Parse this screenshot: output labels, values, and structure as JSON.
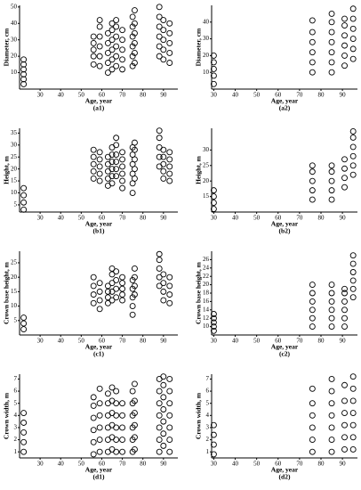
{
  "chart_data": [
    {
      "type": "scatter",
      "ylabel": "Diameter, cm",
      "xlabel": "Age, year",
      "caption": "(a1)",
      "color": "#000000",
      "xlim": [
        20,
        97
      ],
      "ylim": [
        0,
        51
      ],
      "xticks": [
        30,
        40,
        50,
        60,
        70,
        80,
        90
      ],
      "yticks": [
        10,
        20,
        30,
        40,
        50
      ],
      "series": [
        {
          "x": 22,
          "values": [
            3,
            6,
            9,
            12,
            15,
            18
          ]
        },
        {
          "x": 56,
          "values": [
            15,
            20,
            24,
            28,
            32
          ]
        },
        {
          "x": 59,
          "values": [
            14,
            20,
            26,
            32,
            38,
            42
          ]
        },
        {
          "x": 63,
          "values": [
            10,
            16,
            22,
            28,
            34
          ]
        },
        {
          "x": 65,
          "values": [
            12,
            18,
            24,
            30,
            36,
            40
          ]
        },
        {
          "x": 67,
          "values": [
            14,
            20,
            26,
            32,
            38,
            42
          ]
        },
        {
          "x": 70,
          "values": [
            12,
            18,
            24,
            30,
            36
          ]
        },
        {
          "x": 75,
          "values": [
            14,
            20,
            26,
            32,
            38,
            44
          ]
        },
        {
          "x": 76,
          "values": [
            16,
            22,
            28,
            34,
            40,
            48
          ]
        },
        {
          "x": 88,
          "values": [
            20,
            26,
            32,
            38,
            44,
            50
          ]
        },
        {
          "x": 90,
          "values": [
            18,
            24,
            30,
            36,
            42
          ]
        },
        {
          "x": 93,
          "values": [
            16,
            22,
            28,
            34,
            40
          ]
        }
      ]
    },
    {
      "type": "scatter",
      "ylabel": "Diameter, cm",
      "xlabel": "Age, year",
      "caption": "(a2)",
      "color": "#000000",
      "xlim": [
        29,
        97
      ],
      "ylim": [
        0,
        50
      ],
      "xticks": [
        30,
        40,
        50,
        60,
        70,
        80,
        90
      ],
      "yticks": [
        10,
        20,
        30,
        40
      ],
      "series": [
        {
          "x": 30,
          "values": [
            3,
            8,
            12,
            16,
            20
          ]
        },
        {
          "x": 76,
          "values": [
            10,
            16,
            22,
            28,
            34,
            41
          ]
        },
        {
          "x": 85,
          "values": [
            10,
            16,
            22,
            28,
            34,
            40,
            45
          ]
        },
        {
          "x": 91,
          "values": [
            14,
            20,
            26,
            32,
            38,
            42
          ]
        },
        {
          "x": 95,
          "values": [
            18,
            24,
            30,
            36,
            42,
            48
          ]
        }
      ]
    },
    {
      "type": "scatter",
      "ylabel": "Height, m",
      "xlabel": "Age, year",
      "caption": "(b1)",
      "color": "#000000",
      "xlim": [
        20,
        97
      ],
      "ylim": [
        2,
        37
      ],
      "xticks": [
        30,
        40,
        50,
        60,
        70,
        80,
        90
      ],
      "yticks": [
        5,
        10,
        15,
        20,
        25,
        30,
        35
      ],
      "series": [
        {
          "x": 22,
          "values": [
            3,
            6,
            9,
            12
          ]
        },
        {
          "x": 56,
          "values": [
            16,
            19,
            22,
            25,
            28
          ]
        },
        {
          "x": 59,
          "values": [
            15,
            18,
            21,
            24,
            27
          ]
        },
        {
          "x": 63,
          "values": [
            13,
            16,
            19,
            22,
            25
          ]
        },
        {
          "x": 65,
          "values": [
            14,
            17,
            20,
            23,
            26,
            29
          ]
        },
        {
          "x": 67,
          "values": [
            17,
            20,
            23,
            26,
            30,
            33
          ]
        },
        {
          "x": 70,
          "values": [
            12,
            15,
            18,
            21,
            24,
            27
          ]
        },
        {
          "x": 75,
          "values": [
            10,
            14,
            18,
            22,
            26,
            29
          ]
        },
        {
          "x": 76,
          "values": [
            16,
            20,
            24,
            28,
            31
          ]
        },
        {
          "x": 88,
          "values": [
            21,
            25,
            29,
            33,
            36
          ]
        },
        {
          "x": 90,
          "values": [
            16,
            19,
            22,
            25,
            28
          ]
        },
        {
          "x": 93,
          "values": [
            15,
            18,
            21,
            24,
            27
          ]
        }
      ]
    },
    {
      "type": "scatter",
      "ylabel": "Height, m",
      "xlabel": "Age, year",
      "caption": "(b2)",
      "color": "#000000",
      "xlim": [
        29,
        97
      ],
      "ylim": [
        10,
        37
      ],
      "xticks": [
        30,
        40,
        50,
        60,
        70,
        80,
        90
      ],
      "yticks": [
        15,
        20,
        25,
        30
      ],
      "series": [
        {
          "x": 30,
          "values": [
            11,
            13,
            15,
            17
          ]
        },
        {
          "x": 76,
          "values": [
            14,
            17,
            20,
            23,
            25
          ]
        },
        {
          "x": 85,
          "values": [
            14,
            17,
            20,
            23,
            25
          ]
        },
        {
          "x": 91,
          "values": [
            18,
            21,
            24,
            27
          ]
        },
        {
          "x": 95,
          "values": [
            22,
            25,
            28,
            31,
            34,
            36
          ]
        }
      ]
    },
    {
      "type": "scatter",
      "ylabel": "Crown base height, m",
      "xlabel": "Age, year",
      "caption": "(c1)",
      "color": "#000000",
      "xlim": [
        20,
        97
      ],
      "ylim": [
        0,
        29
      ],
      "xticks": [
        30,
        40,
        50,
        60,
        70,
        80,
        90
      ],
      "yticks": [
        5,
        10,
        15,
        20,
        25
      ],
      "series": [
        {
          "x": 22,
          "values": [
            2,
            4,
            6
          ]
        },
        {
          "x": 56,
          "values": [
            11,
            14,
            17,
            20
          ]
        },
        {
          "x": 59,
          "values": [
            9,
            12,
            15,
            18
          ]
        },
        {
          "x": 63,
          "values": [
            11,
            13,
            15,
            17
          ]
        },
        {
          "x": 65,
          "values": [
            12,
            15,
            18,
            21,
            23
          ]
        },
        {
          "x": 67,
          "values": [
            13,
            16,
            19,
            22
          ]
        },
        {
          "x": 70,
          "values": [
            12,
            14,
            16,
            18,
            20
          ]
        },
        {
          "x": 75,
          "values": [
            7,
            10,
            13,
            16,
            19
          ]
        },
        {
          "x": 76,
          "values": [
            14,
            17,
            20,
            23
          ]
        },
        {
          "x": 88,
          "values": [
            17,
            20,
            23,
            26,
            28
          ]
        },
        {
          "x": 90,
          "values": [
            12,
            15,
            18,
            21
          ]
        },
        {
          "x": 93,
          "values": [
            11,
            14,
            17,
            20
          ]
        }
      ]
    },
    {
      "type": "scatter",
      "ylabel": "Crown base height, m",
      "xlabel": "Age, year",
      "caption": "(c2)",
      "color": "#000000",
      "xlim": [
        29,
        97
      ],
      "ylim": [
        8,
        28
      ],
      "xticks": [
        30,
        40,
        50,
        60,
        70,
        80,
        90
      ],
      "yticks": [
        10,
        12,
        14,
        16,
        18,
        20,
        22,
        24,
        26
      ],
      "series": [
        {
          "x": 30,
          "values": [
            9,
            10,
            11,
            12,
            13
          ]
        },
        {
          "x": 76,
          "values": [
            10,
            12,
            14,
            16,
            18,
            20
          ]
        },
        {
          "x": 85,
          "values": [
            10,
            12,
            14,
            16,
            18,
            20
          ]
        },
        {
          "x": 91,
          "values": [
            10,
            12,
            14,
            16,
            18,
            19
          ]
        },
        {
          "x": 95,
          "values": [
            17,
            19,
            21,
            23,
            25,
            27
          ]
        }
      ]
    },
    {
      "type": "scatter",
      "ylabel": "Crown width, m",
      "xlabel": "Age, year",
      "caption": "(d1)",
      "color": "#000000",
      "xlim": [
        20,
        97
      ],
      "ylim": [
        0.5,
        7.4
      ],
      "xticks": [
        30,
        40,
        50,
        60,
        70,
        80,
        90
      ],
      "yticks": [
        1,
        2,
        3,
        4,
        5,
        6,
        7
      ],
      "series": [
        {
          "x": 22,
          "values": [
            1,
            1.8,
            2.6,
            3.4,
            4.2
          ]
        },
        {
          "x": 56,
          "values": [
            0.8,
            1.8,
            2.8,
            3.8,
            4.8,
            5.5
          ]
        },
        {
          "x": 59,
          "values": [
            1,
            2,
            3,
            4,
            5,
            6.2
          ]
        },
        {
          "x": 63,
          "values": [
            1,
            2,
            3,
            4,
            5,
            5.8
          ]
        },
        {
          "x": 65,
          "values": [
            1.2,
            2.2,
            3.2,
            4.2,
            5.2,
            6.3
          ]
        },
        {
          "x": 67,
          "values": [
            1,
            2,
            3,
            4,
            5,
            6
          ]
        },
        {
          "x": 70,
          "values": [
            1,
            2,
            3,
            4,
            5
          ]
        },
        {
          "x": 75,
          "values": [
            1,
            2,
            3,
            4,
            5,
            6
          ]
        },
        {
          "x": 76,
          "values": [
            1.2,
            2.2,
            3.2,
            4.2,
            5.2,
            6.6
          ]
        },
        {
          "x": 88,
          "values": [
            1,
            2,
            3,
            4,
            5,
            6,
            7
          ]
        },
        {
          "x": 90,
          "values": [
            1.5,
            2.5,
            3.5,
            4.5,
            5.5,
            6.5,
            7.2
          ]
        },
        {
          "x": 93,
          "values": [
            1,
            2,
            3,
            4,
            5,
            6,
            7
          ]
        }
      ]
    },
    {
      "type": "scatter",
      "ylabel": "Crown width, m",
      "xlabel": "Age, year",
      "caption": "(d2)",
      "color": "#000000",
      "xlim": [
        29,
        97
      ],
      "ylim": [
        0.5,
        7.4
      ],
      "xticks": [
        30,
        40,
        50,
        60,
        70,
        80,
        90
      ],
      "yticks": [
        1,
        2,
        3,
        4,
        5,
        6,
        7
      ],
      "series": [
        {
          "x": 30,
          "values": [
            0.8,
            1.6,
            2.4,
            3.2
          ]
        },
        {
          "x": 76,
          "values": [
            1,
            2,
            3,
            4,
            5,
            6.2
          ]
        },
        {
          "x": 85,
          "values": [
            1,
            2,
            3,
            4,
            5,
            6,
            7
          ]
        },
        {
          "x": 91,
          "values": [
            1.2,
            2.2,
            3.2,
            4.2,
            5.2,
            6.5
          ]
        },
        {
          "x": 95,
          "values": [
            1.2,
            2.2,
            3.2,
            4.2,
            5.2,
            6.2,
            7.2
          ]
        }
      ]
    }
  ]
}
